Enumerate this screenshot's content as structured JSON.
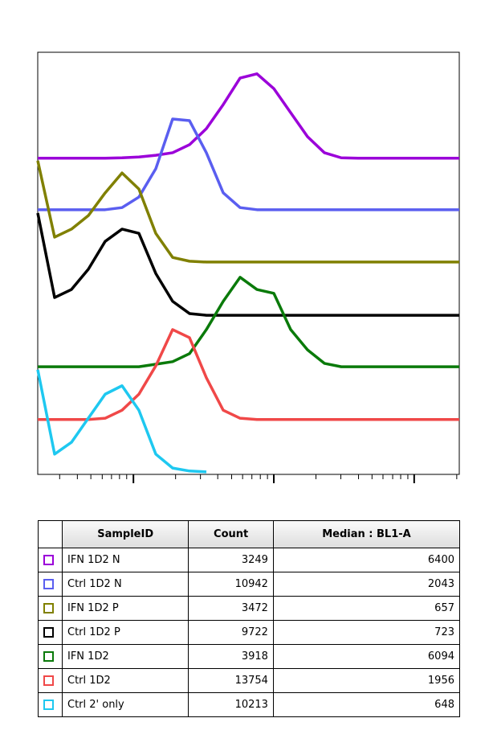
{
  "chart_data": {
    "type": "line",
    "x": [
      0,
      4,
      8,
      12,
      16,
      20,
      24,
      28,
      32,
      36,
      40,
      44,
      48,
      52,
      56,
      60,
      64,
      68,
      72,
      76,
      80,
      84,
      88,
      92,
      96,
      100
    ],
    "xlim": [
      0,
      100
    ],
    "ylim": [
      0,
      100
    ],
    "xticks": [
      22.7,
      56.0,
      89.3
    ],
    "xminorticks": [
      5.2,
      9.4,
      12.6,
      15.3,
      17.5,
      19.4,
      21.1,
      32.7,
      38.6,
      42.7,
      46.0,
      48.6,
      50.8,
      52.8,
      54.5,
      66.0,
      71.9,
      76.1,
      79.3,
      81.9,
      84.2,
      86.1,
      87.8,
      99.4
    ],
    "series": [
      {
        "name": "IFN 1D2 N",
        "color": "#9b00d9",
        "count": 3249,
        "median": 6400,
        "values": [
          74.9,
          74.9,
          74.9,
          74.9,
          74.9,
          75,
          75.2,
          75.6,
          76.2,
          78.1,
          81.9,
          87.6,
          93.9,
          94.9,
          91.4,
          85.7,
          80,
          76.2,
          75,
          74.9,
          74.9,
          74.9,
          74.9,
          74.9,
          74.9,
          74.9
        ]
      },
      {
        "name": "Ctrl 1D2 N",
        "color": "#5a5ef0",
        "count": 10942,
        "median": 2043,
        "values": [
          62.7,
          62.7,
          62.7,
          62.7,
          62.7,
          63.2,
          65.7,
          72.4,
          84.2,
          83.8,
          76.2,
          66.7,
          63.2,
          62.7,
          62.7,
          62.7,
          62.7,
          62.7,
          62.7,
          62.7,
          62.7,
          62.7,
          62.7,
          62.7,
          62.7,
          62.7
        ]
      },
      {
        "name": "IFN 1D2 P",
        "color": "#808000",
        "count": 3472,
        "median": 657,
        "values": [
          74.3,
          56.2,
          58.1,
          61.3,
          66.7,
          71.4,
          67.6,
          57.1,
          51.4,
          50.5,
          50.3,
          50.3,
          50.3,
          50.3,
          50.3,
          50.3,
          50.3,
          50.3,
          50.3,
          50.3,
          50.3,
          50.3,
          50.3,
          50.3,
          50.3,
          50.3
        ]
      },
      {
        "name": "Ctrl 1D2 P",
        "color": "#000000",
        "count": 9722,
        "median": 723,
        "values": [
          61.9,
          41.9,
          43.8,
          48.6,
          55.2,
          58.1,
          57.1,
          47.6,
          41,
          38.1,
          37.7,
          37.7,
          37.7,
          37.7,
          37.7,
          37.7,
          37.7,
          37.7,
          37.7,
          37.7,
          37.7,
          37.7,
          37.7,
          37.7,
          37.7,
          37.7
        ]
      },
      {
        "name": "IFN 1D2",
        "color": "#0a7a0a",
        "count": 3918,
        "median": 6094,
        "values": [
          25.5,
          25.5,
          25.5,
          25.5,
          25.5,
          25.5,
          25.5,
          26.1,
          26.7,
          28.6,
          34.3,
          41,
          46.7,
          43.8,
          42.9,
          34.3,
          29.5,
          26.3,
          25.5,
          25.5,
          25.5,
          25.5,
          25.5,
          25.5,
          25.5,
          25.5
        ]
      },
      {
        "name": "Ctrl 1D2",
        "color": "#f04848",
        "count": 13754,
        "median": 1956,
        "values": [
          13,
          13,
          13,
          13,
          13.3,
          15.2,
          19,
          25.7,
          34.3,
          32.4,
          22.9,
          15.2,
          13.3,
          13,
          13,
          13,
          13,
          13,
          13,
          13,
          13,
          13,
          13,
          13,
          13,
          13
        ]
      },
      {
        "name": "Ctrl 2' only",
        "color": "#1ec8f0",
        "count": 10213,
        "median": 648,
        "values": [
          24.8,
          4.8,
          7.6,
          13.3,
          19,
          21,
          15.2,
          4.8,
          1.5,
          0.8,
          0.6,
          null,
          null,
          null,
          null,
          null,
          null,
          null,
          null,
          null,
          null,
          null,
          null,
          null,
          null,
          null
        ]
      }
    ]
  },
  "table": {
    "columns": [
      "SampleID",
      "Count",
      "Median : BL1-A"
    ]
  }
}
